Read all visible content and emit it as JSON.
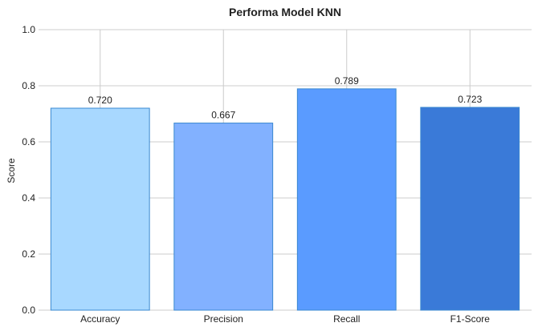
{
  "chart_data": {
    "type": "bar",
    "title": "Performa Model KNN",
    "xlabel": "",
    "ylabel": "Score",
    "categories": [
      "Accuracy",
      "Precision",
      "Recall",
      "F1-Score"
    ],
    "values": [
      0.72,
      0.667,
      0.789,
      0.723
    ],
    "data_labels": [
      "0.720",
      "0.667",
      "0.789",
      "0.723"
    ],
    "ylim": [
      0,
      1.0
    ],
    "yticks": [
      0.0,
      0.2,
      0.4,
      0.6,
      0.8,
      1.0
    ],
    "ytick_labels": [
      "0.0",
      "0.2",
      "0.4",
      "0.6",
      "0.8",
      "1.0"
    ],
    "grid": true,
    "colors": [
      "#a8d8ff",
      "#82b1ff",
      "#5a9bff",
      "#3a7ad8"
    ],
    "edge_colors": [
      "#3a88d0",
      "#3a88d0",
      "#3a88d0",
      "#3a88d0"
    ]
  }
}
